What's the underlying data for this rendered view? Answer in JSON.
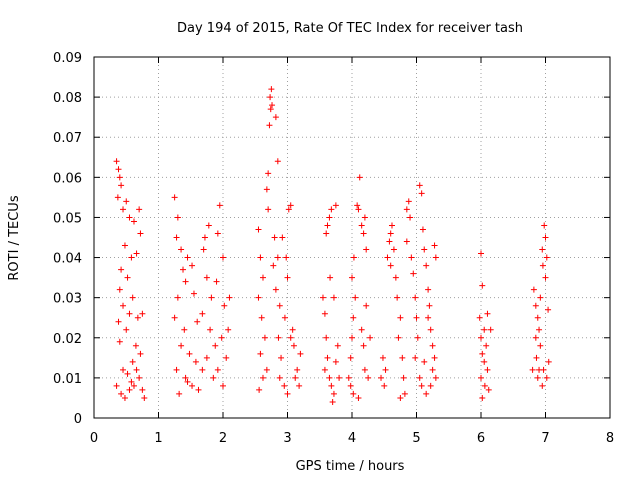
{
  "chart_data": {
    "type": "scatter",
    "title": "Day 194 of 2015, Rate Of TEC Index for receiver tash",
    "xlabel": "GPS time / hours",
    "ylabel": "ROTI / TECUs",
    "xlim": [
      0,
      8
    ],
    "ylim": [
      0,
      0.09
    ],
    "x_ticks": [
      "0",
      "1",
      "2",
      "3",
      "4",
      "5",
      "6",
      "7",
      "8"
    ],
    "y_ticks": [
      "0",
      "0.01",
      "0.02",
      "0.03",
      "0.04",
      "0.05",
      "0.06",
      "0.07",
      "0.08",
      "0.09"
    ],
    "grid": true,
    "marker": "+",
    "color": "#ff0000",
    "series": [
      {
        "name": "ROTI",
        "points": [
          [
            0.35,
            0.064
          ],
          [
            0.38,
            0.062
          ],
          [
            0.4,
            0.06
          ],
          [
            0.42,
            0.058
          ],
          [
            0.37,
            0.055
          ],
          [
            0.45,
            0.052
          ],
          [
            0.5,
            0.054
          ],
          [
            0.55,
            0.05
          ],
          [
            0.62,
            0.049
          ],
          [
            0.7,
            0.052
          ],
          [
            0.72,
            0.046
          ],
          [
            0.48,
            0.043
          ],
          [
            0.58,
            0.04
          ],
          [
            0.66,
            0.041
          ],
          [
            0.42,
            0.037
          ],
          [
            0.52,
            0.035
          ],
          [
            0.4,
            0.032
          ],
          [
            0.6,
            0.03
          ],
          [
            0.45,
            0.028
          ],
          [
            0.55,
            0.026
          ],
          [
            0.38,
            0.024
          ],
          [
            0.5,
            0.022
          ],
          [
            0.68,
            0.025
          ],
          [
            0.75,
            0.026
          ],
          [
            0.4,
            0.019
          ],
          [
            0.65,
            0.018
          ],
          [
            0.72,
            0.016
          ],
          [
            0.45,
            0.012
          ],
          [
            0.52,
            0.011
          ],
          [
            0.58,
            0.009
          ],
          [
            0.62,
            0.008
          ],
          [
            0.7,
            0.01
          ],
          [
            0.75,
            0.007
          ],
          [
            0.35,
            0.008
          ],
          [
            0.42,
            0.006
          ],
          [
            0.48,
            0.005
          ],
          [
            0.55,
            0.007
          ],
          [
            0.66,
            0.012
          ],
          [
            0.78,
            0.005
          ],
          [
            0.6,
            0.014
          ],
          [
            1.25,
            0.055
          ],
          [
            1.3,
            0.05
          ],
          [
            1.28,
            0.045
          ],
          [
            1.35,
            0.042
          ],
          [
            1.45,
            0.04
          ],
          [
            1.38,
            0.037
          ],
          [
            1.52,
            0.038
          ],
          [
            1.42,
            0.034
          ],
          [
            1.3,
            0.03
          ],
          [
            1.55,
            0.031
          ],
          [
            1.25,
            0.025
          ],
          [
            1.4,
            0.022
          ],
          [
            1.6,
            0.024
          ],
          [
            1.35,
            0.018
          ],
          [
            1.48,
            0.016
          ],
          [
            1.58,
            0.014
          ],
          [
            1.28,
            0.012
          ],
          [
            1.42,
            0.01
          ],
          [
            1.52,
            0.008
          ],
          [
            1.62,
            0.007
          ],
          [
            1.32,
            0.006
          ],
          [
            1.45,
            0.009
          ],
          [
            1.68,
            0.012
          ],
          [
            1.72,
            0.045
          ],
          [
            1.78,
            0.048
          ],
          [
            1.7,
            0.042
          ],
          [
            1.75,
            0.035
          ],
          [
            1.82,
            0.03
          ],
          [
            1.68,
            0.026
          ],
          [
            1.8,
            0.022
          ],
          [
            1.88,
            0.018
          ],
          [
            1.75,
            0.015
          ],
          [
            1.85,
            0.01
          ],
          [
            1.95,
            0.053
          ],
          [
            1.92,
            0.046
          ],
          [
            2.0,
            0.04
          ],
          [
            1.9,
            0.034
          ],
          [
            2.02,
            0.028
          ],
          [
            1.98,
            0.02
          ],
          [
            2.05,
            0.015
          ],
          [
            1.92,
            0.012
          ],
          [
            2.0,
            0.008
          ],
          [
            2.08,
            0.022
          ],
          [
            2.1,
            0.03
          ],
          [
            2.55,
            0.047
          ],
          [
            2.58,
            0.04
          ],
          [
            2.62,
            0.035
          ],
          [
            2.55,
            0.03
          ],
          [
            2.6,
            0.025
          ],
          [
            2.65,
            0.02
          ],
          [
            2.58,
            0.016
          ],
          [
            2.62,
            0.01
          ],
          [
            2.56,
            0.007
          ],
          [
            2.68,
            0.012
          ],
          [
            2.7,
            0.052
          ],
          [
            2.68,
            0.057
          ],
          [
            2.7,
            0.061
          ],
          [
            2.72,
            0.073
          ],
          [
            2.74,
            0.077
          ],
          [
            2.73,
            0.08
          ],
          [
            2.75,
            0.082
          ],
          [
            2.76,
            0.078
          ],
          [
            2.82,
            0.075
          ],
          [
            2.85,
            0.064
          ],
          [
            2.8,
            0.045
          ],
          [
            2.78,
            0.038
          ],
          [
            2.85,
            0.04
          ],
          [
            2.82,
            0.032
          ],
          [
            2.88,
            0.028
          ],
          [
            2.86,
            0.02
          ],
          [
            2.9,
            0.015
          ],
          [
            2.88,
            0.01
          ],
          [
            2.95,
            0.008
          ],
          [
            2.92,
            0.045
          ],
          [
            2.98,
            0.04
          ],
          [
            3.0,
            0.035
          ],
          [
            3.02,
            0.052
          ],
          [
            3.05,
            0.053
          ],
          [
            2.96,
            0.025
          ],
          [
            3.05,
            0.02
          ],
          [
            3.1,
            0.018
          ],
          [
            3.15,
            0.012
          ],
          [
            3.18,
            0.008
          ],
          [
            3.2,
            0.016
          ],
          [
            3.0,
            0.006
          ],
          [
            3.08,
            0.022
          ],
          [
            3.12,
            0.01
          ],
          [
            3.55,
            0.03
          ],
          [
            3.58,
            0.026
          ],
          [
            3.6,
            0.02
          ],
          [
            3.62,
            0.015
          ],
          [
            3.58,
            0.012
          ],
          [
            3.65,
            0.01
          ],
          [
            3.68,
            0.008
          ],
          [
            3.72,
            0.006
          ],
          [
            3.7,
            0.004
          ],
          [
            3.62,
            0.048
          ],
          [
            3.65,
            0.05
          ],
          [
            3.68,
            0.052
          ],
          [
            3.6,
            0.046
          ],
          [
            3.75,
            0.053
          ],
          [
            3.78,
            0.018
          ],
          [
            3.75,
            0.014
          ],
          [
            3.8,
            0.01
          ],
          [
            3.66,
            0.035
          ],
          [
            3.72,
            0.03
          ],
          [
            3.95,
            0.01
          ],
          [
            3.98,
            0.015
          ],
          [
            4.0,
            0.02
          ],
          [
            4.02,
            0.025
          ],
          [
            4.05,
            0.03
          ],
          [
            4.0,
            0.035
          ],
          [
            4.03,
            0.04
          ],
          [
            3.98,
            0.008
          ],
          [
            4.08,
            0.053
          ],
          [
            4.1,
            0.052
          ],
          [
            4.12,
            0.06
          ],
          [
            4.15,
            0.048
          ],
          [
            4.18,
            0.046
          ],
          [
            4.2,
            0.05
          ],
          [
            4.22,
            0.042
          ],
          [
            4.15,
            0.022
          ],
          [
            4.18,
            0.018
          ],
          [
            4.2,
            0.012
          ],
          [
            4.25,
            0.01
          ],
          [
            4.22,
            0.028
          ],
          [
            4.1,
            0.005
          ],
          [
            4.28,
            0.02
          ],
          [
            4.02,
            0.006
          ],
          [
            4.45,
            0.01
          ],
          [
            4.5,
            0.008
          ],
          [
            4.48,
            0.015
          ],
          [
            4.52,
            0.012
          ],
          [
            4.55,
            0.04
          ],
          [
            4.58,
            0.044
          ],
          [
            4.6,
            0.046
          ],
          [
            4.62,
            0.048
          ],
          [
            4.65,
            0.042
          ],
          [
            4.6,
            0.038
          ],
          [
            4.68,
            0.035
          ],
          [
            4.7,
            0.03
          ],
          [
            4.75,
            0.025
          ],
          [
            4.72,
            0.02
          ],
          [
            4.78,
            0.015
          ],
          [
            4.8,
            0.01
          ],
          [
            4.82,
            0.006
          ],
          [
            4.75,
            0.005
          ],
          [
            4.85,
            0.052
          ],
          [
            4.88,
            0.054
          ],
          [
            4.9,
            0.05
          ],
          [
            4.85,
            0.044
          ],
          [
            4.92,
            0.04
          ],
          [
            4.95,
            0.036
          ],
          [
            4.98,
            0.03
          ],
          [
            5.0,
            0.025
          ],
          [
            5.02,
            0.02
          ],
          [
            4.98,
            0.015
          ],
          [
            5.05,
            0.01
          ],
          [
            5.08,
            0.008
          ],
          [
            5.05,
            0.058
          ],
          [
            5.08,
            0.056
          ],
          [
            5.1,
            0.047
          ],
          [
            5.12,
            0.042
          ],
          [
            5.15,
            0.038
          ],
          [
            5.18,
            0.032
          ],
          [
            5.2,
            0.028
          ],
          [
            5.22,
            0.022
          ],
          [
            5.25,
            0.018
          ],
          [
            5.28,
            0.015
          ],
          [
            5.25,
            0.012
          ],
          [
            5.3,
            0.01
          ],
          [
            5.22,
            0.008
          ],
          [
            5.15,
            0.006
          ],
          [
            5.28,
            0.043
          ],
          [
            5.3,
            0.04
          ],
          [
            5.18,
            0.025
          ],
          [
            5.12,
            0.014
          ],
          [
            6.0,
            0.041
          ],
          [
            6.02,
            0.033
          ],
          [
            5.98,
            0.025
          ],
          [
            6.05,
            0.022
          ],
          [
            6.0,
            0.02
          ],
          [
            6.08,
            0.018
          ],
          [
            6.02,
            0.016
          ],
          [
            6.05,
            0.014
          ],
          [
            6.1,
            0.012
          ],
          [
            6.0,
            0.01
          ],
          [
            6.06,
            0.008
          ],
          [
            6.12,
            0.007
          ],
          [
            6.02,
            0.005
          ],
          [
            6.15,
            0.022
          ],
          [
            6.1,
            0.026
          ],
          [
            6.82,
            0.032
          ],
          [
            6.85,
            0.028
          ],
          [
            6.88,
            0.025
          ],
          [
            6.9,
            0.022
          ],
          [
            6.85,
            0.02
          ],
          [
            6.92,
            0.018
          ],
          [
            6.86,
            0.015
          ],
          [
            6.9,
            0.012
          ],
          [
            6.88,
            0.01
          ],
          [
            6.95,
            0.008
          ],
          [
            6.98,
            0.048
          ],
          [
            7.0,
            0.045
          ],
          [
            6.95,
            0.042
          ],
          [
            7.02,
            0.04
          ],
          [
            6.96,
            0.038
          ],
          [
            7.0,
            0.035
          ],
          [
            6.92,
            0.03
          ],
          [
            7.04,
            0.027
          ],
          [
            6.97,
            0.012
          ],
          [
            7.02,
            0.01
          ],
          [
            6.8,
            0.012
          ],
          [
            7.05,
            0.014
          ]
        ]
      }
    ]
  }
}
